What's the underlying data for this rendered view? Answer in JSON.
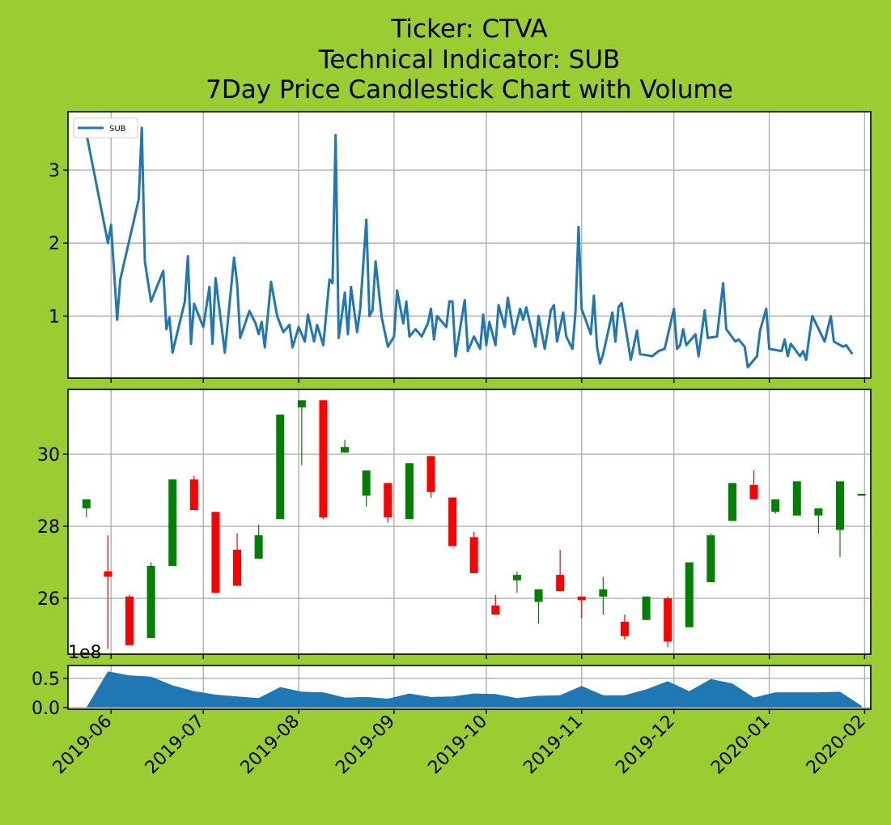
{
  "chart_data": {
    "title_lines": [
      "Ticker: CTVA",
      "Technical Indicator: SUB",
      "7Day Price Candlestick Chart with Volume"
    ],
    "x_tick_labels": [
      "2019-06",
      "2019-07",
      "2019-08",
      "2019-09",
      "2019-10",
      "2019-11",
      "2019-12",
      "2020-01",
      "2020-02"
    ],
    "colors": {
      "background": "#9acd32",
      "line": "#1f77b4",
      "up": "#008000",
      "down": "#ff0000",
      "volume": "#1f77b4",
      "grid": "#b0b0b0"
    },
    "indicator": {
      "type": "line",
      "legend": "SUB",
      "ylim": [
        0.15,
        3.8
      ],
      "yticks": [
        1,
        2,
        3
      ],
      "points": [
        [
          "2019-05-24",
          3.5
        ],
        [
          "2019-05-31",
          2.0
        ],
        [
          "2019-06-01",
          2.25
        ],
        [
          "2019-06-03",
          0.95
        ],
        [
          "2019-06-04",
          1.5
        ],
        [
          "2019-06-10",
          2.6
        ],
        [
          "2019-06-11",
          3.58
        ],
        [
          "2019-06-12",
          1.75
        ],
        [
          "2019-06-14",
          1.2
        ],
        [
          "2019-06-18",
          1.62
        ],
        [
          "2019-06-19",
          0.82
        ],
        [
          "2019-06-20",
          0.98
        ],
        [
          "2019-06-21",
          0.5
        ],
        [
          "2019-06-25",
          1.2
        ],
        [
          "2019-06-26",
          1.82
        ],
        [
          "2019-06-27",
          0.62
        ],
        [
          "2019-06-28",
          1.17
        ],
        [
          "2019-07-01",
          0.85
        ],
        [
          "2019-07-03",
          1.4
        ],
        [
          "2019-07-04",
          0.62
        ],
        [
          "2019-07-05",
          1.52
        ],
        [
          "2019-07-08",
          0.5
        ],
        [
          "2019-07-11",
          1.8
        ],
        [
          "2019-07-12",
          1.45
        ],
        [
          "2019-07-13",
          0.7
        ],
        [
          "2019-07-16",
          1.07
        ],
        [
          "2019-07-18",
          0.9
        ],
        [
          "2019-07-19",
          0.75
        ],
        [
          "2019-07-20",
          0.92
        ],
        [
          "2019-07-21",
          0.57
        ],
        [
          "2019-07-23",
          1.47
        ],
        [
          "2019-07-25",
          1.0
        ],
        [
          "2019-07-27",
          0.78
        ],
        [
          "2019-07-29",
          0.88
        ],
        [
          "2019-07-30",
          0.57
        ],
        [
          "2019-08-01",
          0.85
        ],
        [
          "2019-08-03",
          0.65
        ],
        [
          "2019-08-04",
          1.02
        ],
        [
          "2019-08-06",
          0.65
        ],
        [
          "2019-08-07",
          0.88
        ],
        [
          "2019-08-09",
          0.6
        ],
        [
          "2019-08-11",
          1.5
        ],
        [
          "2019-08-12",
          1.45
        ],
        [
          "2019-08-13",
          3.48
        ],
        [
          "2019-08-14",
          0.7
        ],
        [
          "2019-08-15",
          1.0
        ],
        [
          "2019-08-16",
          1.32
        ],
        [
          "2019-08-17",
          0.75
        ],
        [
          "2019-08-18",
          1.4
        ],
        [
          "2019-08-20",
          0.78
        ],
        [
          "2019-08-21",
          1.1
        ],
        [
          "2019-08-23",
          2.32
        ],
        [
          "2019-08-24",
          1.0
        ],
        [
          "2019-08-25",
          1.08
        ],
        [
          "2019-08-26",
          1.75
        ],
        [
          "2019-08-28",
          0.98
        ],
        [
          "2019-08-30",
          0.58
        ],
        [
          "2019-09-01",
          0.72
        ],
        [
          "2019-09-02",
          1.35
        ],
        [
          "2019-09-04",
          0.9
        ],
        [
          "2019-09-05",
          1.2
        ],
        [
          "2019-09-06",
          0.72
        ],
        [
          "2019-09-08",
          0.82
        ],
        [
          "2019-09-10",
          0.72
        ],
        [
          "2019-09-12",
          0.9
        ],
        [
          "2019-09-13",
          1.1
        ],
        [
          "2019-09-14",
          0.68
        ],
        [
          "2019-09-15",
          1.0
        ],
        [
          "2019-09-18",
          0.85
        ],
        [
          "2019-09-19",
          1.2
        ],
        [
          "2019-09-20",
          1.2
        ],
        [
          "2019-09-21",
          0.45
        ],
        [
          "2019-09-24",
          1.22
        ],
        [
          "2019-09-25",
          0.52
        ],
        [
          "2019-09-27",
          0.72
        ],
        [
          "2019-09-29",
          0.55
        ],
        [
          "2019-09-30",
          1.02
        ],
        [
          "2019-10-01",
          0.6
        ],
        [
          "2019-10-02",
          0.92
        ],
        [
          "2019-10-04",
          0.6
        ],
        [
          "2019-10-05",
          1.15
        ],
        [
          "2019-10-07",
          0.85
        ],
        [
          "2019-10-08",
          1.25
        ],
        [
          "2019-10-10",
          0.75
        ],
        [
          "2019-10-12",
          1.1
        ],
        [
          "2019-10-13",
          0.95
        ],
        [
          "2019-10-14",
          1.12
        ],
        [
          "2019-10-17",
          0.58
        ],
        [
          "2019-10-18",
          1.0
        ],
        [
          "2019-10-20",
          0.55
        ],
        [
          "2019-10-22",
          1.08
        ],
        [
          "2019-10-23",
          1.15
        ],
        [
          "2019-10-24",
          0.65
        ],
        [
          "2019-10-26",
          1.05
        ],
        [
          "2019-10-27",
          0.72
        ],
        [
          "2019-10-29",
          0.55
        ],
        [
          "2019-10-30",
          1.05
        ],
        [
          "2019-10-31",
          2.22
        ],
        [
          "2019-11-01",
          1.1
        ],
        [
          "2019-11-04",
          0.75
        ],
        [
          "2019-11-05",
          1.28
        ],
        [
          "2019-11-06",
          0.58
        ],
        [
          "2019-11-07",
          0.35
        ],
        [
          "2019-11-08",
          0.48
        ],
        [
          "2019-11-11",
          1.05
        ],
        [
          "2019-11-12",
          0.65
        ],
        [
          "2019-11-13",
          1.12
        ],
        [
          "2019-11-14",
          1.18
        ],
        [
          "2019-11-17",
          0.4
        ],
        [
          "2019-11-19",
          0.8
        ],
        [
          "2019-11-20",
          0.48
        ],
        [
          "2019-11-24",
          0.45
        ],
        [
          "2019-11-26",
          0.52
        ],
        [
          "2019-11-28",
          0.55
        ],
        [
          "2019-12-01",
          1.1
        ],
        [
          "2019-12-02",
          0.55
        ],
        [
          "2019-12-03",
          0.6
        ],
        [
          "2019-12-04",
          0.82
        ],
        [
          "2019-12-05",
          0.6
        ],
        [
          "2019-12-08",
          0.75
        ],
        [
          "2019-12-09",
          0.45
        ],
        [
          "2019-12-11",
          1.08
        ],
        [
          "2019-12-12",
          0.7
        ],
        [
          "2019-12-15",
          0.72
        ],
        [
          "2019-12-17",
          1.45
        ],
        [
          "2019-12-18",
          0.82
        ],
        [
          "2019-12-21",
          0.65
        ],
        [
          "2019-12-22",
          0.68
        ],
        [
          "2019-12-24",
          0.58
        ],
        [
          "2019-12-25",
          0.3
        ],
        [
          "2019-12-28",
          0.45
        ],
        [
          "2019-12-29",
          0.8
        ],
        [
          "2019-12-31",
          1.1
        ],
        [
          "2020-01-01",
          0.55
        ],
        [
          "2020-01-05",
          0.52
        ],
        [
          "2020-01-06",
          0.68
        ],
        [
          "2020-01-07",
          0.45
        ],
        [
          "2020-01-08",
          0.62
        ],
        [
          "2020-01-11",
          0.45
        ],
        [
          "2020-01-12",
          0.52
        ],
        [
          "2020-01-13",
          0.4
        ],
        [
          "2020-01-14",
          0.72
        ],
        [
          "2020-01-15",
          1.0
        ],
        [
          "2020-01-19",
          0.65
        ],
        [
          "2020-01-21",
          1.0
        ],
        [
          "2020-01-22",
          0.65
        ],
        [
          "2020-01-25",
          0.58
        ],
        [
          "2020-01-26",
          0.6
        ],
        [
          "2020-01-28",
          0.48
        ]
      ]
    },
    "candles": {
      "type": "candlestick",
      "ylim": [
        24.45,
        31.8
      ],
      "yticks": [
        26,
        28,
        30
      ],
      "bars": [
        {
          "date": "2019-05-24",
          "open": 28.5,
          "high": 28.75,
          "low": 28.25,
          "close": 28.75
        },
        {
          "date": "2019-05-31",
          "open": 26.75,
          "high": 27.75,
          "low": 24.6,
          "close": 26.6
        },
        {
          "date": "2019-06-07",
          "open": 26.05,
          "high": 26.1,
          "low": 24.7,
          "close": 24.7
        },
        {
          "date": "2019-06-14",
          "open": 24.9,
          "high": 27.0,
          "low": 24.9,
          "close": 26.9
        },
        {
          "date": "2019-06-21",
          "open": 26.9,
          "high": 29.3,
          "low": 26.9,
          "close": 29.3
        },
        {
          "date": "2019-06-28",
          "open": 29.3,
          "high": 29.4,
          "low": 28.45,
          "close": 28.45
        },
        {
          "date": "2019-07-05",
          "open": 28.4,
          "high": 28.4,
          "low": 26.15,
          "close": 26.15
        },
        {
          "date": "2019-07-12",
          "open": 27.35,
          "high": 27.8,
          "low": 26.35,
          "close": 26.35
        },
        {
          "date": "2019-07-19",
          "open": 27.1,
          "high": 28.05,
          "low": 27.1,
          "close": 27.75
        },
        {
          "date": "2019-07-26",
          "open": 28.2,
          "high": 31.1,
          "low": 28.2,
          "close": 31.1
        },
        {
          "date": "2019-08-02",
          "open": 31.3,
          "high": 31.5,
          "low": 29.7,
          "close": 31.5
        },
        {
          "date": "2019-08-09",
          "open": 31.5,
          "high": 31.5,
          "low": 28.2,
          "close": 28.25
        },
        {
          "date": "2019-08-16",
          "open": 30.05,
          "high": 30.4,
          "low": 30.05,
          "close": 30.2
        },
        {
          "date": "2019-08-23",
          "open": 28.85,
          "high": 29.55,
          "low": 28.55,
          "close": 29.55
        },
        {
          "date": "2019-08-30",
          "open": 29.2,
          "high": 29.2,
          "low": 28.1,
          "close": 28.25
        },
        {
          "date": "2019-09-06",
          "open": 28.2,
          "high": 29.75,
          "low": 28.2,
          "close": 29.75
        },
        {
          "date": "2019-09-13",
          "open": 29.95,
          "high": 29.95,
          "low": 28.8,
          "close": 28.95
        },
        {
          "date": "2019-09-20",
          "open": 28.8,
          "high": 28.8,
          "low": 27.45,
          "close": 27.45
        },
        {
          "date": "2019-09-27",
          "open": 27.7,
          "high": 27.85,
          "low": 26.7,
          "close": 26.7
        },
        {
          "date": "2019-10-04",
          "open": 25.8,
          "high": 26.1,
          "low": 25.55,
          "close": 25.55
        },
        {
          "date": "2019-10-11",
          "open": 26.5,
          "high": 26.75,
          "low": 26.15,
          "close": 26.65
        },
        {
          "date": "2019-10-18",
          "open": 25.9,
          "high": 26.25,
          "low": 25.3,
          "close": 26.25
        },
        {
          "date": "2019-10-25",
          "open": 26.65,
          "high": 27.35,
          "low": 26.2,
          "close": 26.2
        },
        {
          "date": "2019-11-01",
          "open": 26.05,
          "high": 26.05,
          "low": 25.45,
          "close": 25.95
        },
        {
          "date": "2019-11-08",
          "open": 26.05,
          "high": 26.6,
          "low": 25.55,
          "close": 26.25
        },
        {
          "date": "2019-11-15",
          "open": 25.35,
          "high": 25.55,
          "low": 24.85,
          "close": 24.95
        },
        {
          "date": "2019-11-22",
          "open": 25.4,
          "high": 26.05,
          "low": 25.4,
          "close": 26.05
        },
        {
          "date": "2019-11-29",
          "open": 26.0,
          "high": 26.05,
          "low": 24.65,
          "close": 24.8
        },
        {
          "date": "2019-12-06",
          "open": 25.2,
          "high": 27.0,
          "low": 25.2,
          "close": 27.0
        },
        {
          "date": "2019-12-13",
          "open": 26.45,
          "high": 27.8,
          "low": 26.45,
          "close": 27.75
        },
        {
          "date": "2019-12-20",
          "open": 28.15,
          "high": 29.2,
          "low": 28.15,
          "close": 29.2
        },
        {
          "date": "2019-12-27",
          "open": 29.15,
          "high": 29.55,
          "low": 28.75,
          "close": 28.75
        },
        {
          "date": "2020-01-03",
          "open": 28.4,
          "high": 28.75,
          "low": 28.35,
          "close": 28.75
        },
        {
          "date": "2020-01-10",
          "open": 28.3,
          "high": 29.25,
          "low": 28.3,
          "close": 29.25
        },
        {
          "date": "2020-01-17",
          "open": 28.3,
          "high": 28.5,
          "low": 27.8,
          "close": 28.5
        },
        {
          "date": "2020-01-24",
          "open": 27.9,
          "high": 29.25,
          "low": 27.15,
          "close": 29.25
        },
        {
          "date": "2020-01-31",
          "open": 28.85,
          "high": 28.9,
          "low": 28.85,
          "close": 28.9
        }
      ]
    },
    "volume": {
      "type": "area",
      "multiplier_label": "1e8",
      "ylim": [
        -0.03,
        0.72
      ],
      "yticks": [
        0.0,
        0.5
      ],
      "ytick_labels": [
        "0.0",
        "0.5"
      ],
      "points": [
        [
          "2019-05-24",
          0.0
        ],
        [
          "2019-05-31",
          0.62
        ],
        [
          "2019-06-07",
          0.55
        ],
        [
          "2019-06-14",
          0.53
        ],
        [
          "2019-06-21",
          0.38
        ],
        [
          "2019-06-28",
          0.28
        ],
        [
          "2019-07-05",
          0.22
        ],
        [
          "2019-07-12",
          0.19
        ],
        [
          "2019-07-19",
          0.16
        ],
        [
          "2019-07-26",
          0.35
        ],
        [
          "2019-08-02",
          0.27
        ],
        [
          "2019-08-09",
          0.26
        ],
        [
          "2019-08-16",
          0.17
        ],
        [
          "2019-08-23",
          0.18
        ],
        [
          "2019-08-30",
          0.15
        ],
        [
          "2019-09-06",
          0.24
        ],
        [
          "2019-09-13",
          0.18
        ],
        [
          "2019-09-20",
          0.19
        ],
        [
          "2019-09-27",
          0.24
        ],
        [
          "2019-10-04",
          0.23
        ],
        [
          "2019-10-11",
          0.16
        ],
        [
          "2019-10-18",
          0.2
        ],
        [
          "2019-10-25",
          0.21
        ],
        [
          "2019-11-01",
          0.37
        ],
        [
          "2019-11-08",
          0.21
        ],
        [
          "2019-11-15",
          0.21
        ],
        [
          "2019-11-22",
          0.31
        ],
        [
          "2019-11-29",
          0.45
        ],
        [
          "2019-12-06",
          0.28
        ],
        [
          "2019-12-13",
          0.49
        ],
        [
          "2019-12-20",
          0.41
        ],
        [
          "2019-12-27",
          0.17
        ],
        [
          "2020-01-03",
          0.26
        ],
        [
          "2020-01-10",
          0.26
        ],
        [
          "2020-01-17",
          0.26
        ],
        [
          "2020-01-24",
          0.27
        ],
        [
          "2020-01-31",
          0.03
        ]
      ]
    }
  }
}
